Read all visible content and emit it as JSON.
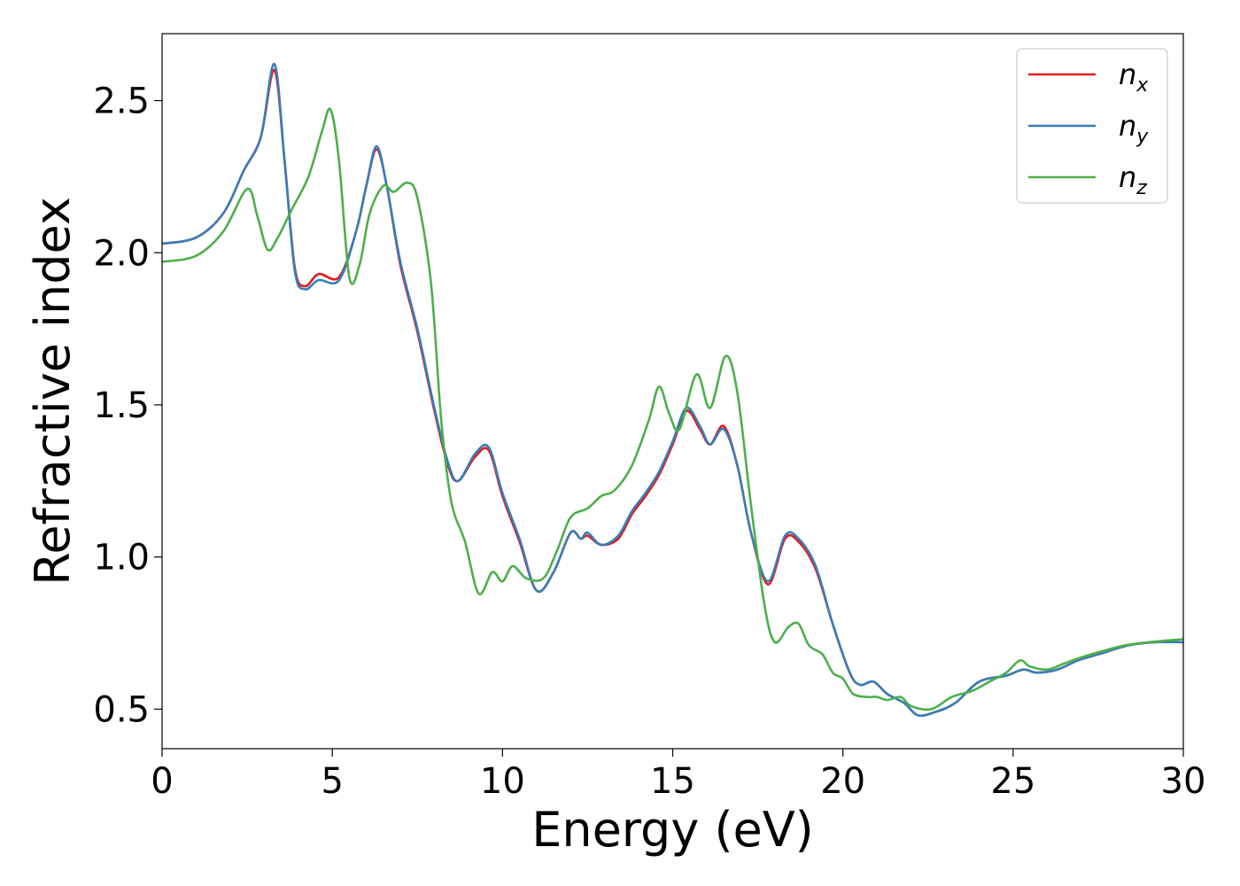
{
  "chart_data": {
    "type": "line",
    "title": "",
    "xlabel": "Energy (eV)",
    "ylabel": "Refractive index",
    "xlim": [
      0,
      30
    ],
    "ylim": [
      0.37,
      2.72
    ],
    "xticks": [
      0,
      5,
      10,
      15,
      20,
      25,
      30
    ],
    "xtick_labels": [
      "0",
      "5",
      "10",
      "15",
      "20",
      "25",
      "30"
    ],
    "yticks": [
      0.5,
      1.0,
      1.5,
      2.0,
      2.5
    ],
    "ytick_labels": [
      "0.5",
      "1.0",
      "1.5",
      "2.0",
      "2.5"
    ],
    "grid": false,
    "legend_position": "top-right",
    "series": [
      {
        "name": "n",
        "sub": "x",
        "color": "#e41a1c",
        "points": [
          [
            0,
            2.03
          ],
          [
            1,
            2.05
          ],
          [
            1.8,
            2.13
          ],
          [
            2.4,
            2.27
          ],
          [
            2.9,
            2.38
          ],
          [
            3.3,
            2.6
          ],
          [
            3.6,
            2.3
          ],
          [
            3.9,
            1.95
          ],
          [
            4.2,
            1.89
          ],
          [
            4.6,
            1.93
          ],
          [
            5.2,
            1.92
          ],
          [
            5.7,
            2.07
          ],
          [
            6.0,
            2.22
          ],
          [
            6.3,
            2.34
          ],
          [
            6.6,
            2.22
          ],
          [
            7.0,
            1.96
          ],
          [
            7.5,
            1.74
          ],
          [
            8.0,
            1.48
          ],
          [
            8.4,
            1.3
          ],
          [
            8.7,
            1.25
          ],
          [
            9.2,
            1.33
          ],
          [
            9.6,
            1.35
          ],
          [
            10.0,
            1.2
          ],
          [
            10.5,
            1.05
          ],
          [
            11.0,
            0.89
          ],
          [
            11.5,
            0.95
          ],
          [
            12.0,
            1.08
          ],
          [
            12.3,
            1.06
          ],
          [
            12.5,
            1.07
          ],
          [
            12.9,
            1.04
          ],
          [
            13.4,
            1.06
          ],
          [
            13.8,
            1.14
          ],
          [
            14.2,
            1.2
          ],
          [
            14.6,
            1.27
          ],
          [
            15.0,
            1.37
          ],
          [
            15.4,
            1.48
          ],
          [
            15.8,
            1.42
          ],
          [
            16.1,
            1.37
          ],
          [
            16.5,
            1.43
          ],
          [
            16.9,
            1.3
          ],
          [
            17.3,
            1.08
          ],
          [
            17.8,
            0.91
          ],
          [
            18.3,
            1.06
          ],
          [
            18.7,
            1.05
          ],
          [
            19.2,
            0.96
          ],
          [
            19.7,
            0.78
          ],
          [
            20.2,
            0.62
          ],
          [
            20.5,
            0.58
          ],
          [
            20.9,
            0.59
          ],
          [
            21.3,
            0.55
          ],
          [
            21.8,
            0.52
          ],
          [
            22.2,
            0.48
          ],
          [
            22.7,
            0.49
          ],
          [
            23.3,
            0.52
          ],
          [
            24.0,
            0.59
          ],
          [
            24.8,
            0.61
          ],
          [
            25.3,
            0.63
          ],
          [
            25.7,
            0.62
          ],
          [
            26.3,
            0.63
          ],
          [
            26.9,
            0.66
          ],
          [
            27.5,
            0.68
          ],
          [
            28.4,
            0.71
          ],
          [
            29.2,
            0.72
          ],
          [
            30.0,
            0.72
          ]
        ]
      },
      {
        "name": "n",
        "sub": "y",
        "color": "#377eb8",
        "points": [
          [
            0,
            2.03
          ],
          [
            1,
            2.05
          ],
          [
            1.8,
            2.13
          ],
          [
            2.4,
            2.27
          ],
          [
            2.9,
            2.38
          ],
          [
            3.3,
            2.62
          ],
          [
            3.6,
            2.3
          ],
          [
            3.9,
            1.94
          ],
          [
            4.2,
            1.88
          ],
          [
            4.6,
            1.91
          ],
          [
            5.2,
            1.91
          ],
          [
            5.7,
            2.07
          ],
          [
            6.0,
            2.22
          ],
          [
            6.3,
            2.35
          ],
          [
            6.6,
            2.22
          ],
          [
            7.0,
            1.97
          ],
          [
            7.5,
            1.75
          ],
          [
            8.0,
            1.49
          ],
          [
            8.4,
            1.31
          ],
          [
            8.7,
            1.25
          ],
          [
            9.2,
            1.34
          ],
          [
            9.6,
            1.36
          ],
          [
            10.0,
            1.21
          ],
          [
            10.5,
            1.06
          ],
          [
            11.0,
            0.89
          ],
          [
            11.5,
            0.95
          ],
          [
            12.0,
            1.08
          ],
          [
            12.3,
            1.06
          ],
          [
            12.5,
            1.08
          ],
          [
            12.9,
            1.04
          ],
          [
            13.4,
            1.07
          ],
          [
            13.8,
            1.15
          ],
          [
            14.2,
            1.21
          ],
          [
            14.6,
            1.28
          ],
          [
            15.0,
            1.38
          ],
          [
            15.4,
            1.49
          ],
          [
            15.8,
            1.43
          ],
          [
            16.1,
            1.37
          ],
          [
            16.5,
            1.42
          ],
          [
            16.9,
            1.3
          ],
          [
            17.3,
            1.08
          ],
          [
            17.8,
            0.92
          ],
          [
            18.3,
            1.07
          ],
          [
            18.7,
            1.06
          ],
          [
            19.2,
            0.97
          ],
          [
            19.7,
            0.78
          ],
          [
            20.2,
            0.62
          ],
          [
            20.5,
            0.58
          ],
          [
            20.9,
            0.59
          ],
          [
            21.3,
            0.55
          ],
          [
            21.8,
            0.52
          ],
          [
            22.2,
            0.48
          ],
          [
            22.7,
            0.49
          ],
          [
            23.3,
            0.52
          ],
          [
            24.0,
            0.59
          ],
          [
            24.8,
            0.61
          ],
          [
            25.3,
            0.63
          ],
          [
            25.7,
            0.62
          ],
          [
            26.3,
            0.63
          ],
          [
            26.9,
            0.66
          ],
          [
            27.5,
            0.68
          ],
          [
            28.4,
            0.71
          ],
          [
            29.2,
            0.72
          ],
          [
            30.0,
            0.72
          ]
        ]
      },
      {
        "name": "n",
        "sub": "z",
        "color": "#4daf4a",
        "points": [
          [
            0,
            1.97
          ],
          [
            1,
            1.99
          ],
          [
            1.8,
            2.07
          ],
          [
            2.5,
            2.21
          ],
          [
            2.8,
            2.12
          ],
          [
            3.1,
            2.01
          ],
          [
            3.4,
            2.05
          ],
          [
            3.8,
            2.14
          ],
          [
            4.3,
            2.25
          ],
          [
            4.7,
            2.4
          ],
          [
            4.95,
            2.47
          ],
          [
            5.2,
            2.3
          ],
          [
            5.5,
            1.92
          ],
          [
            5.8,
            1.96
          ],
          [
            6.1,
            2.13
          ],
          [
            6.5,
            2.22
          ],
          [
            6.8,
            2.2
          ],
          [
            7.2,
            2.23
          ],
          [
            7.5,
            2.18
          ],
          [
            7.9,
            1.9
          ],
          [
            8.2,
            1.45
          ],
          [
            8.5,
            1.18
          ],
          [
            8.9,
            1.05
          ],
          [
            9.3,
            0.88
          ],
          [
            9.7,
            0.95
          ],
          [
            10.0,
            0.92
          ],
          [
            10.3,
            0.97
          ],
          [
            10.7,
            0.93
          ],
          [
            11.2,
            0.93
          ],
          [
            11.6,
            1.02
          ],
          [
            12.0,
            1.13
          ],
          [
            12.5,
            1.16
          ],
          [
            12.9,
            1.2
          ],
          [
            13.3,
            1.22
          ],
          [
            13.8,
            1.3
          ],
          [
            14.3,
            1.45
          ],
          [
            14.6,
            1.56
          ],
          [
            14.9,
            1.47
          ],
          [
            15.2,
            1.42
          ],
          [
            15.7,
            1.6
          ],
          [
            16.1,
            1.49
          ],
          [
            16.55,
            1.66
          ],
          [
            16.9,
            1.54
          ],
          [
            17.3,
            1.17
          ],
          [
            17.7,
            0.84
          ],
          [
            18.0,
            0.72
          ],
          [
            18.4,
            0.77
          ],
          [
            18.7,
            0.78
          ],
          [
            19.0,
            0.71
          ],
          [
            19.4,
            0.68
          ],
          [
            19.7,
            0.62
          ],
          [
            20.0,
            0.6
          ],
          [
            20.3,
            0.55
          ],
          [
            20.7,
            0.54
          ],
          [
            21.0,
            0.54
          ],
          [
            21.3,
            0.53
          ],
          [
            21.7,
            0.54
          ],
          [
            22.0,
            0.51
          ],
          [
            22.6,
            0.5
          ],
          [
            23.2,
            0.54
          ],
          [
            23.8,
            0.56
          ],
          [
            24.3,
            0.59
          ],
          [
            24.8,
            0.62
          ],
          [
            25.2,
            0.66
          ],
          [
            25.5,
            0.64
          ],
          [
            26.0,
            0.63
          ],
          [
            26.5,
            0.65
          ],
          [
            27.0,
            0.67
          ],
          [
            27.6,
            0.69
          ],
          [
            28.3,
            0.71
          ],
          [
            29.0,
            0.72
          ],
          [
            30.0,
            0.73
          ]
        ]
      }
    ]
  }
}
